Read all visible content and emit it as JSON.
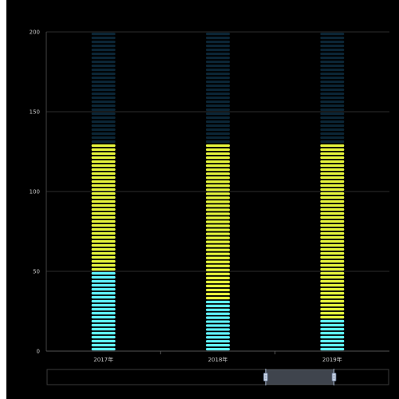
{
  "chart_data": {
    "type": "bar",
    "stacked": true,
    "style": "pictorial-segmented",
    "categories": [
      "2017年",
      "2018年",
      "2019年"
    ],
    "series": [
      {
        "values": [
          50,
          32,
          20
        ],
        "color": "#5ff3ff"
      },
      {
        "values": [
          80,
          98,
          110
        ],
        "color": "#e6f53c"
      },
      {
        "values": [
          70,
          70,
          70
        ],
        "color": "#0b2535"
      }
    ],
    "ylim": [
      0,
      200
    ],
    "yticks": [
      0,
      50,
      100,
      150,
      200
    ],
    "grid": true,
    "legend": "none",
    "title": "",
    "xlabel": "",
    "ylabel": "",
    "datazoom": {
      "start": 0.64,
      "end": 0.84
    }
  }
}
